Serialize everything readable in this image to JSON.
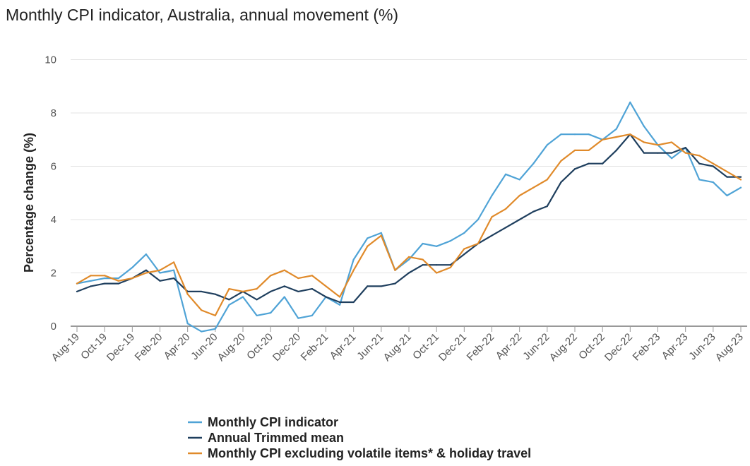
{
  "chart_data": {
    "type": "line",
    "title": "Monthly CPI indicator, Australia, annual movement (%)",
    "xlabel": "",
    "ylabel": "Percentage change (%)",
    "ylim": [
      -0.5,
      10
    ],
    "yticks": [
      0,
      2,
      4,
      6,
      8,
      10
    ],
    "grid": true,
    "legend_position": "bottom",
    "x": [
      "Aug-19",
      "Sep-19",
      "Oct-19",
      "Nov-19",
      "Dec-19",
      "Jan-20",
      "Feb-20",
      "Mar-20",
      "Apr-20",
      "May-20",
      "Jun-20",
      "Jul-20",
      "Aug-20",
      "Sep-20",
      "Oct-20",
      "Nov-20",
      "Dec-20",
      "Jan-21",
      "Feb-21",
      "Mar-21",
      "Apr-21",
      "May-21",
      "Jun-21",
      "Jul-21",
      "Aug-21",
      "Sep-21",
      "Oct-21",
      "Nov-21",
      "Dec-21",
      "Jan-22",
      "Feb-22",
      "Mar-22",
      "Apr-22",
      "May-22",
      "Jun-22",
      "Jul-22",
      "Aug-22",
      "Sep-22",
      "Oct-22",
      "Nov-22",
      "Dec-22",
      "Jan-23",
      "Feb-23",
      "Mar-23",
      "Apr-23",
      "May-23",
      "Jun-23",
      "Jul-23",
      "Aug-23"
    ],
    "x_tick_labels": [
      "Aug-19",
      "Oct-19",
      "Dec-19",
      "Feb-20",
      "Apr-20",
      "Jun-20",
      "Aug-20",
      "Oct-20",
      "Dec-20",
      "Feb-21",
      "Apr-21",
      "Jun-21",
      "Aug-21",
      "Oct-21",
      "Dec-21",
      "Feb-22",
      "Apr-22",
      "Jun-22",
      "Aug-22",
      "Oct-22",
      "Dec-22",
      "Feb-23",
      "Apr-23",
      "Jun-23",
      "Aug-23"
    ],
    "series": [
      {
        "name": "Monthly CPI indicator",
        "color": "#4fa3d6",
        "values": [
          1.6,
          1.7,
          1.8,
          1.8,
          2.2,
          2.7,
          2.0,
          2.1,
          0.1,
          -0.2,
          -0.1,
          0.8,
          1.1,
          0.4,
          0.5,
          1.1,
          0.3,
          0.4,
          1.1,
          0.8,
          2.5,
          3.3,
          3.5,
          2.1,
          2.5,
          3.1,
          3.0,
          3.2,
          3.5,
          4.0,
          4.9,
          5.7,
          5.5,
          6.1,
          6.8,
          7.2,
          7.2,
          7.2,
          7.0,
          7.4,
          8.4,
          7.5,
          6.8,
          6.3,
          6.7,
          5.5,
          5.4,
          4.9,
          5.2
        ]
      },
      {
        "name": "Annual Trimmed mean",
        "color": "#1f3f5e",
        "values": [
          1.3,
          1.5,
          1.6,
          1.6,
          1.8,
          2.1,
          1.7,
          1.8,
          1.3,
          1.3,
          1.2,
          1.0,
          1.3,
          1.0,
          1.3,
          1.5,
          1.3,
          1.4,
          1.1,
          0.9,
          0.9,
          1.5,
          1.5,
          1.6,
          2.0,
          2.3,
          2.3,
          2.3,
          2.7,
          3.1,
          3.4,
          3.7,
          4.0,
          4.3,
          4.5,
          5.4,
          5.9,
          6.1,
          6.1,
          6.6,
          7.2,
          6.5,
          6.5,
          6.5,
          6.7,
          6.1,
          6.0,
          5.6,
          5.6
        ]
      },
      {
        "name": "Monthly CPI excluding volatile items* & holiday travel",
        "color": "#e08a2a",
        "values": [
          1.6,
          1.9,
          1.9,
          1.7,
          1.8,
          2.0,
          2.1,
          2.4,
          1.2,
          0.6,
          0.4,
          1.4,
          1.3,
          1.4,
          1.9,
          2.1,
          1.8,
          1.9,
          1.5,
          1.1,
          2.1,
          3.0,
          3.4,
          2.1,
          2.6,
          2.5,
          2.0,
          2.2,
          2.9,
          3.1,
          4.1,
          4.4,
          4.9,
          5.2,
          5.5,
          6.2,
          6.6,
          6.6,
          7.0,
          7.1,
          7.2,
          6.9,
          6.8,
          6.9,
          6.5,
          6.4,
          6.1,
          5.8,
          5.5
        ]
      }
    ]
  }
}
